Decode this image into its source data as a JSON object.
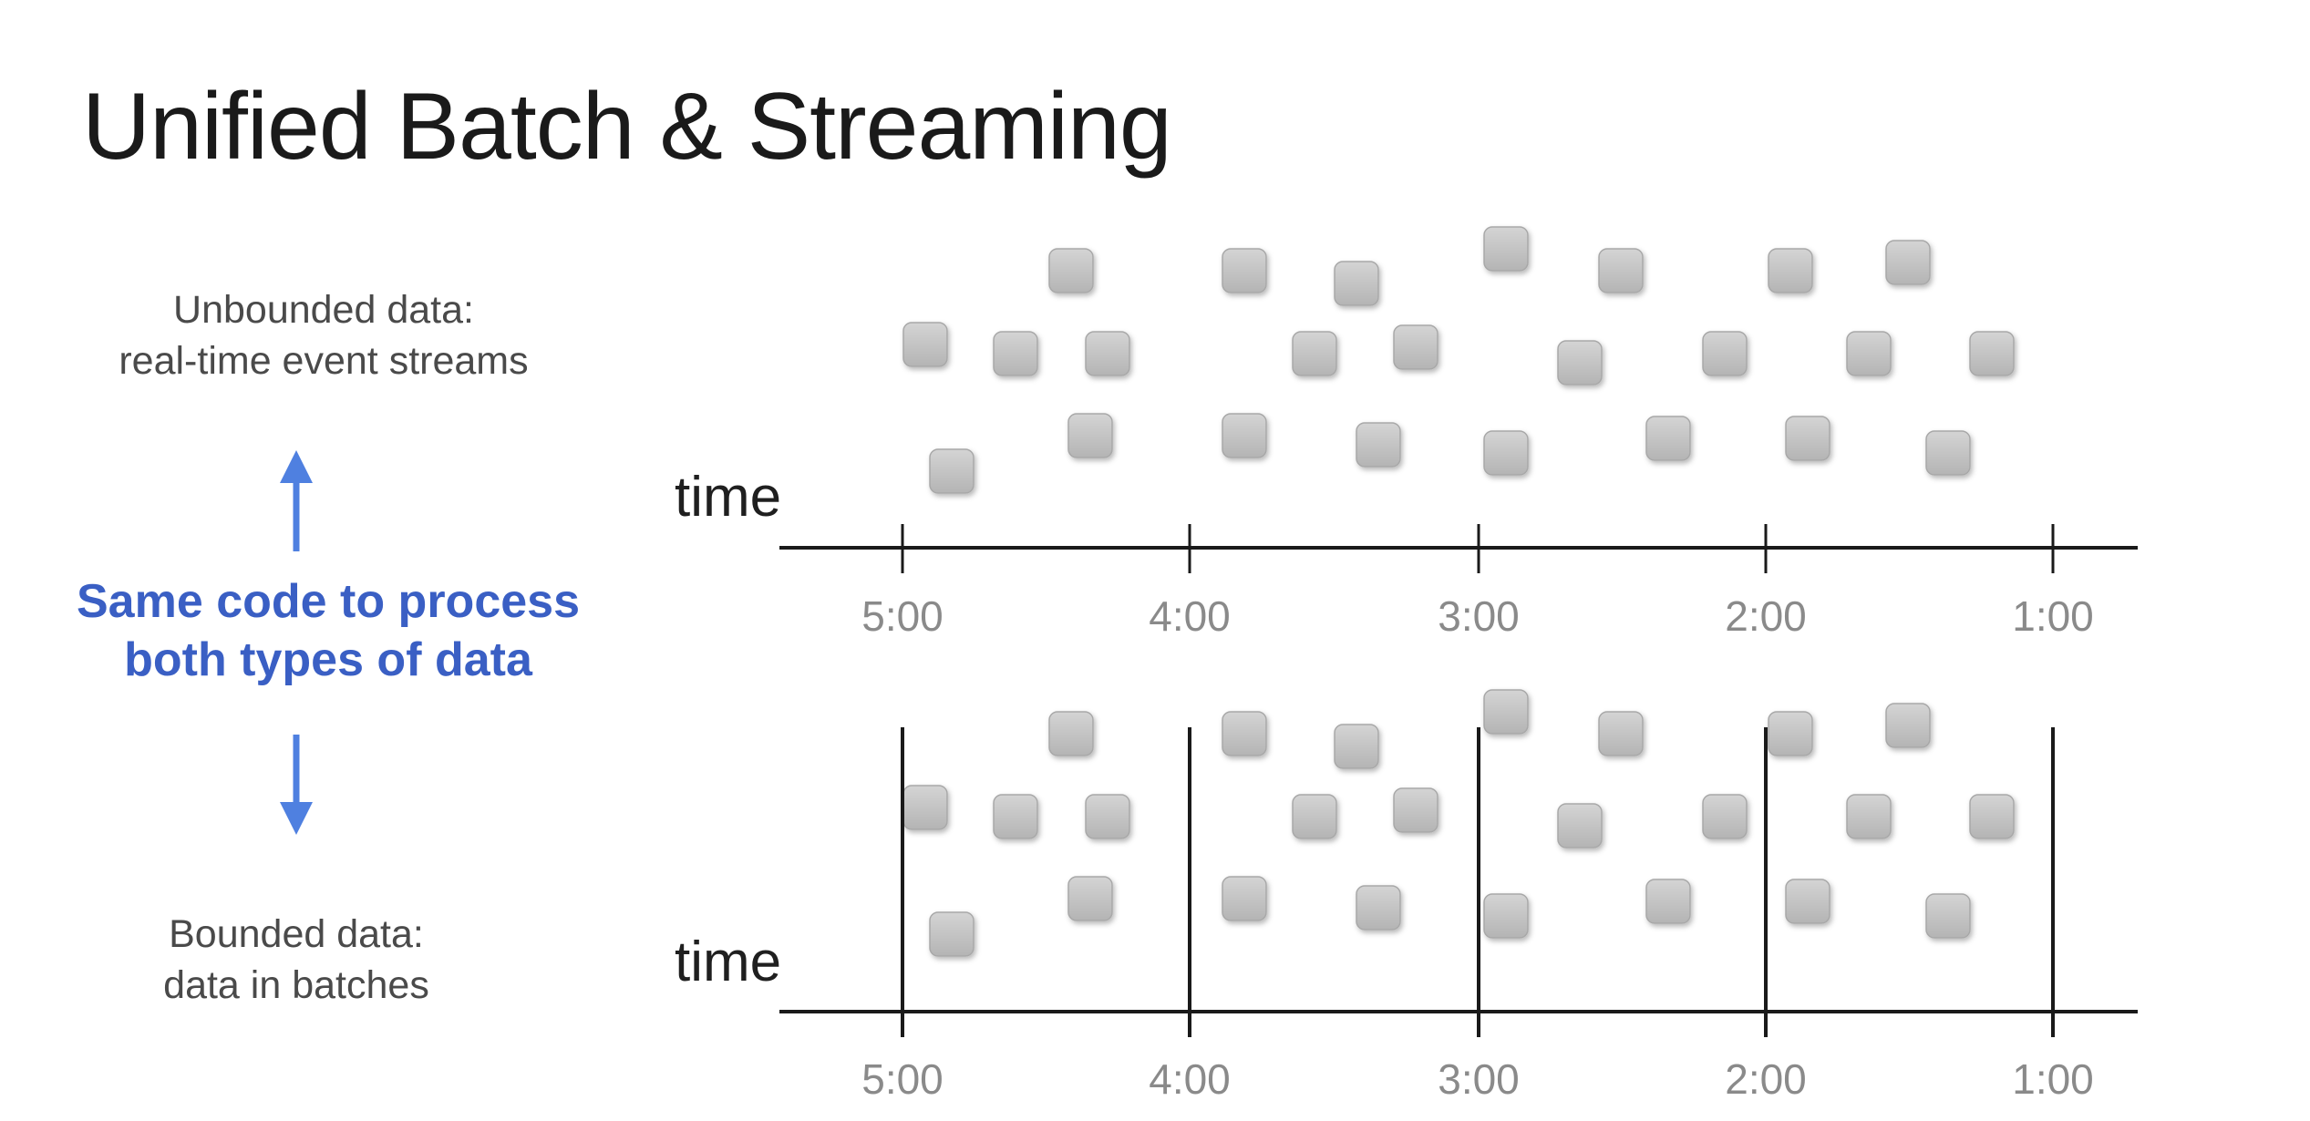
{
  "title": "Unified Batch & Streaming",
  "labels": {
    "unbounded_line1": "Unbounded data:",
    "unbounded_line2": "real-time event streams",
    "middle_line1": "Same code to process",
    "middle_line2": "both types of data",
    "bounded_line1": "Bounded data:",
    "bounded_line2": "data in batches",
    "time": "time"
  },
  "timeline": {
    "ticks": [
      "5:00",
      "4:00",
      "3:00",
      "2:00",
      "1:00"
    ]
  },
  "colors": {
    "accent": "#3a5fc4",
    "arrow": "#4f80e0",
    "event": "#bdbdbd"
  }
}
